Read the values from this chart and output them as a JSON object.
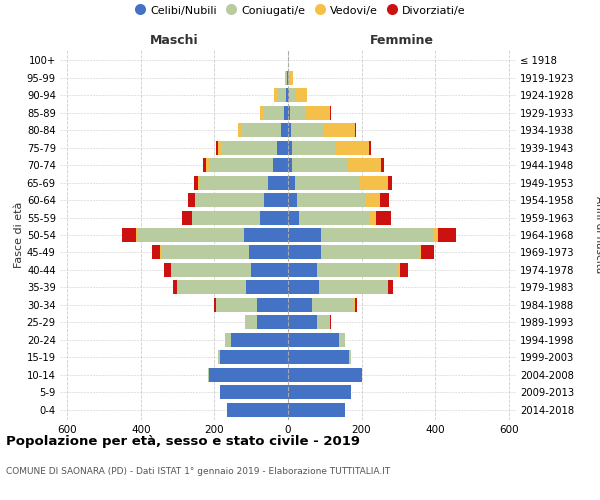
{
  "age_groups": [
    "0-4",
    "5-9",
    "10-14",
    "15-19",
    "20-24",
    "25-29",
    "30-34",
    "35-39",
    "40-44",
    "45-49",
    "50-54",
    "55-59",
    "60-64",
    "65-69",
    "70-74",
    "75-79",
    "80-84",
    "85-89",
    "90-94",
    "95-99",
    "100+"
  ],
  "birth_years": [
    "2014-2018",
    "2009-2013",
    "2004-2008",
    "1999-2003",
    "1994-1998",
    "1989-1993",
    "1984-1988",
    "1979-1983",
    "1974-1978",
    "1969-1973",
    "1964-1968",
    "1959-1963",
    "1954-1958",
    "1949-1953",
    "1944-1948",
    "1939-1943",
    "1934-1938",
    "1929-1933",
    "1924-1928",
    "1919-1923",
    "≤ 1918"
  ],
  "maschi": {
    "celibi": [
      165,
      185,
      215,
      185,
      155,
      85,
      85,
      115,
      100,
      105,
      120,
      75,
      65,
      55,
      40,
      30,
      20,
      10,
      5,
      2,
      0
    ],
    "coniugati": [
      0,
      0,
      3,
      5,
      15,
      30,
      110,
      185,
      215,
      240,
      290,
      185,
      185,
      185,
      175,
      150,
      105,
      55,
      25,
      3,
      0
    ],
    "vedovi": [
      0,
      0,
      0,
      0,
      2,
      2,
      2,
      3,
      3,
      2,
      2,
      2,
      2,
      6,
      8,
      10,
      10,
      10,
      8,
      2,
      0
    ],
    "divorziati": [
      0,
      0,
      0,
      0,
      0,
      0,
      5,
      10,
      18,
      22,
      40,
      25,
      20,
      10,
      8,
      5,
      2,
      0,
      0,
      0,
      0
    ]
  },
  "femmine": {
    "nubili": [
      155,
      170,
      200,
      165,
      140,
      80,
      65,
      85,
      80,
      90,
      90,
      30,
      25,
      18,
      12,
      10,
      8,
      5,
      2,
      1,
      0
    ],
    "coniugate": [
      0,
      0,
      2,
      5,
      15,
      35,
      115,
      185,
      220,
      265,
      305,
      190,
      185,
      175,
      150,
      120,
      90,
      45,
      20,
      4,
      0
    ],
    "vedove": [
      0,
      0,
      0,
      0,
      0,
      0,
      2,
      3,
      5,
      8,
      12,
      20,
      40,
      80,
      90,
      90,
      85,
      65,
      30,
      8,
      0
    ],
    "divorziate": [
      0,
      0,
      0,
      0,
      0,
      2,
      5,
      12,
      20,
      35,
      50,
      40,
      25,
      10,
      8,
      5,
      3,
      2,
      0,
      0,
      0
    ]
  },
  "colors": {
    "celibi": "#4472c4",
    "coniugati": "#b8cca0",
    "vedovi": "#f5c04a",
    "divorziati": "#cc1111"
  },
  "xlim": 620,
  "title": "Popolazione per età, sesso e stato civile - 2019",
  "subtitle": "COMUNE DI SAONARA (PD) - Dati ISTAT 1° gennaio 2019 - Elaborazione TUTTITALIA.IT",
  "ylabel_left": "Fasce di età",
  "ylabel_right": "Anni di nascita",
  "xlabel_left": "Maschi",
  "xlabel_right": "Femmine",
  "legend_labels": [
    "Celibi/Nubili",
    "Coniugati/e",
    "Vedovi/e",
    "Divorziati/e"
  ]
}
